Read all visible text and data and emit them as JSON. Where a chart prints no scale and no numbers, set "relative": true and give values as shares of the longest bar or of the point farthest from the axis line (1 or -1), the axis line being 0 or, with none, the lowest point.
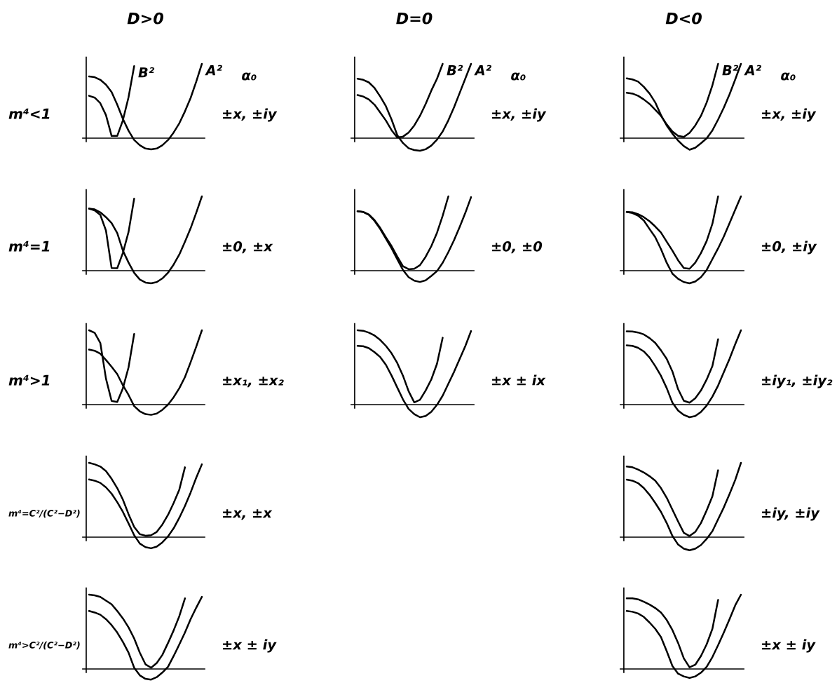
{
  "chart_data": [
    {
      "type": "line",
      "relative": true,
      "title": "D>0",
      "ylabel": "m⁴<1",
      "categories": [
        null,
        null,
        null,
        null,
        null,
        null,
        null,
        null,
        null,
        null,
        null,
        null,
        null,
        null,
        null,
        null,
        null,
        null,
        null,
        null,
        null
      ],
      "series": [
        {
          "name": "B²",
          "color": "#000000",
          "values": [
            0.57,
            0.545,
            0.47,
            0.31,
            0.03,
            0.03,
            0.24,
            0.55,
            0.97,
            null,
            null,
            null,
            null,
            null,
            null,
            null,
            null,
            null,
            null,
            null,
            null
          ]
        },
        {
          "name": "A²",
          "color": "#000000",
          "values": [
            0.83,
            0.82,
            0.785,
            0.72,
            0.62,
            0.45,
            0.26,
            0.1,
            -0.025,
            -0.095,
            -0.14,
            -0.15,
            -0.14,
            -0.095,
            -0.025,
            0.076,
            0.2,
            0.36,
            0.54,
            0.76,
            1.0
          ]
        }
      ],
      "annotations": [
        "α₀",
        "±x, ±iy"
      ]
    },
    {
      "type": "line",
      "relative": true,
      "title": "D=0",
      "categories": [
        null,
        null,
        null,
        null,
        null,
        null,
        null,
        null,
        null,
        null,
        null,
        null,
        null,
        null,
        null,
        null,
        null,
        null,
        null,
        null,
        null
      ],
      "series": [
        {
          "name": "B²",
          "color": "#000000",
          "values": [
            0.58,
            0.56,
            0.52,
            0.45,
            0.345,
            0.237,
            0.107,
            0.01,
            0.02,
            0.075,
            0.17,
            0.3,
            0.46,
            0.64,
            0.8,
            1.0,
            null,
            null,
            null,
            null,
            null
          ]
        },
        {
          "name": "A²",
          "color": "#000000",
          "values": [
            0.8,
            0.785,
            0.75,
            0.675,
            0.56,
            0.43,
            0.25,
            0.04,
            -0.065,
            -0.136,
            -0.16,
            -0.17,
            -0.15,
            -0.1,
            -0.02,
            0.09,
            0.24,
            0.415,
            0.61,
            0.805,
            1.0
          ]
        }
      ],
      "annotations": [
        "α₀",
        "±x, ±iy"
      ]
    },
    {
      "type": "line",
      "relative": true,
      "title": "D<0",
      "categories": [
        null,
        null,
        null,
        null,
        null,
        null,
        null,
        null,
        null,
        null,
        null,
        null,
        null,
        null,
        null,
        null,
        null,
        null,
        null,
        null,
        null
      ],
      "series": [
        {
          "name": "B²",
          "color": "#000000",
          "values": [
            0.61,
            0.6,
            0.57,
            0.52,
            0.46,
            0.38,
            0.3,
            0.185,
            0.09,
            0.03,
            0.016,
            0.07,
            0.17,
            0.3,
            0.48,
            0.71,
            1.0,
            null,
            null,
            null,
            null
          ]
        },
        {
          "name": "A²",
          "color": "#000000",
          "values": [
            0.805,
            0.79,
            0.76,
            0.69,
            0.6,
            0.48,
            0.31,
            0.17,
            0.06,
            -0.033,
            -0.107,
            -0.156,
            -0.13,
            -0.068,
            -0.003,
            0.104,
            0.25,
            0.41,
            0.59,
            0.79,
            1.0
          ]
        }
      ],
      "annotations": [
        "α₀",
        "±x, ±iy"
      ]
    },
    {
      "type": "line",
      "relative": true,
      "ylabel": "m⁴=1",
      "categories": [
        null,
        null,
        null,
        null,
        null,
        null,
        null,
        null,
        null,
        null,
        null,
        null,
        null,
        null,
        null,
        null,
        null,
        null,
        null,
        null,
        null
      ],
      "series": [
        {
          "color": "#000000",
          "values": [
            0.835,
            0.81,
            0.75,
            0.54,
            0.036,
            0.033,
            0.24,
            0.52,
            0.97,
            null,
            null,
            null,
            null,
            null,
            null,
            null,
            null,
            null,
            null,
            null,
            null
          ]
        },
        {
          "color": "#000000",
          "values": [
            0.835,
            0.825,
            0.785,
            0.72,
            0.64,
            0.505,
            0.27,
            0.11,
            -0.03,
            -0.119,
            -0.16,
            -0.17,
            -0.153,
            -0.104,
            -0.028,
            0.083,
            0.218,
            0.39,
            0.57,
            0.78,
            1.0
          ]
        }
      ],
      "annotations": [
        "±0, ±x"
      ]
    },
    {
      "type": "line",
      "relative": true,
      "categories": [
        null,
        null,
        null,
        null,
        null,
        null,
        null,
        null,
        null,
        null,
        null,
        null,
        null,
        null,
        null,
        null,
        null,
        null,
        null,
        null,
        null
      ],
      "series": [
        {
          "color": "#000000",
          "values": [
            0.8,
            0.79,
            0.755,
            0.68,
            0.575,
            0.45,
            0.33,
            0.19,
            0.06,
            0.02,
            0.026,
            0.074,
            0.187,
            0.33,
            0.51,
            0.74,
            1.0,
            null,
            null,
            null,
            null
          ]
        },
        {
          "color": "#000000",
          "values": [
            0.8,
            0.79,
            0.75,
            0.67,
            0.56,
            0.43,
            0.3,
            0.155,
            0.01,
            -0.087,
            -0.135,
            -0.152,
            -0.13,
            -0.07,
            -0.006,
            0.106,
            0.25,
            0.41,
            0.59,
            0.78,
            0.99
          ]
        }
      ],
      "annotations": [
        "±0, ±0"
      ]
    },
    {
      "type": "line",
      "relative": true,
      "categories": [
        null,
        null,
        null,
        null,
        null,
        null,
        null,
        null,
        null,
        null,
        null,
        null,
        null,
        null,
        null,
        null,
        null,
        null,
        null,
        null,
        null
      ],
      "series": [
        {
          "color": "#000000",
          "values": [
            0.79,
            0.785,
            0.76,
            0.72,
            0.665,
            0.594,
            0.513,
            0.39,
            0.27,
            0.14,
            0.036,
            0.026,
            0.107,
            0.237,
            0.4,
            0.63,
            1.0,
            null,
            null,
            null,
            null
          ]
        },
        {
          "color": "#000000",
          "values": [
            0.79,
            0.775,
            0.74,
            0.675,
            0.56,
            0.45,
            0.29,
            0.107,
            -0.04,
            -0.11,
            -0.153,
            -0.17,
            -0.146,
            -0.088,
            0.01,
            0.156,
            0.3,
            0.46,
            0.64,
            0.82,
            1.0
          ]
        }
      ],
      "annotations": [
        "±0, ±iy"
      ]
    },
    {
      "type": "line",
      "relative": true,
      "ylabel": "m⁴>1",
      "categories": [
        null,
        null,
        null,
        null,
        null,
        null,
        null,
        null,
        null,
        null,
        null,
        null,
        null,
        null,
        null,
        null,
        null,
        null,
        null,
        null,
        null
      ],
      "series": [
        {
          "color": "#000000",
          "values": [
            1.0,
            0.965,
            0.83,
            0.35,
            0.05,
            0.035,
            0.22,
            0.5,
            0.95,
            null,
            null,
            null,
            null,
            null,
            null,
            null,
            null,
            null,
            null,
            null,
            null
          ]
        },
        {
          "color": "#000000",
          "values": [
            0.74,
            0.725,
            0.685,
            0.6,
            0.51,
            0.41,
            0.26,
            0.13,
            -0.02,
            -0.09,
            -0.128,
            -0.138,
            -0.12,
            -0.07,
            0.0,
            0.1,
            0.22,
            0.37,
            0.57,
            0.78,
            1.0
          ]
        }
      ],
      "annotations": [
        "±x₁, ±x₂"
      ]
    },
    {
      "type": "line",
      "relative": true,
      "categories": [
        null,
        null,
        null,
        null,
        null,
        null,
        null,
        null,
        null,
        null,
        null,
        null,
        null,
        null,
        null,
        null,
        null,
        null,
        null,
        null,
        null
      ],
      "series": [
        {
          "color": "#000000",
          "values": [
            1.0,
            0.994,
            0.968,
            0.93,
            0.87,
            0.79,
            0.69,
            0.56,
            0.39,
            0.18,
            0.03,
            0.064,
            0.19,
            0.34,
            0.55,
            0.9,
            null,
            null,
            null,
            null,
            null
          ]
        },
        {
          "color": "#000000",
          "values": [
            0.79,
            0.785,
            0.76,
            0.705,
            0.64,
            0.535,
            0.39,
            0.23,
            0.07,
            -0.058,
            -0.128,
            -0.17,
            -0.154,
            -0.096,
            -0.003,
            0.12,
            0.28,
            0.44,
            0.615,
            0.79,
            0.99
          ]
        }
      ],
      "annotations": [
        "±x ± ix"
      ]
    },
    {
      "type": "line",
      "relative": true,
      "categories": [
        null,
        null,
        null,
        null,
        null,
        null,
        null,
        null,
        null,
        null,
        null,
        null,
        null,
        null,
        null,
        null,
        null,
        null,
        null,
        null,
        null
      ],
      "series": [
        {
          "color": "#000000",
          "values": [
            0.987,
            0.984,
            0.97,
            0.944,
            0.895,
            0.83,
            0.73,
            0.616,
            0.446,
            0.207,
            0.052,
            0.026,
            0.085,
            0.19,
            0.338,
            0.518,
            0.88,
            null,
            null,
            null,
            null
          ]
        },
        {
          "color": "#000000",
          "values": [
            0.797,
            0.79,
            0.764,
            0.715,
            0.633,
            0.518,
            0.387,
            0.223,
            0.026,
            -0.08,
            -0.138,
            -0.17,
            -0.154,
            -0.098,
            -0.013,
            0.108,
            0.256,
            0.436,
            0.616,
            0.813,
            1.0
          ]
        }
      ],
      "annotations": [
        "±iy₁, ±iy₂"
      ]
    },
    {
      "type": "line",
      "relative": true,
      "ylabel": "m⁴=C²/(C²−D²)",
      "categories": [
        null,
        null,
        null,
        null,
        null,
        null,
        null,
        null,
        null,
        null,
        null,
        null,
        null,
        null,
        null,
        null,
        null,
        null,
        null,
        null,
        null
      ],
      "series": [
        {
          "color": "#000000",
          "values": [
            1.0,
            0.98,
            0.95,
            0.89,
            0.785,
            0.66,
            0.505,
            0.31,
            0.137,
            0.04,
            0.02,
            0.026,
            0.07,
            0.17,
            0.3,
            0.46,
            0.64,
            0.94,
            null,
            null,
            null
          ]
        },
        {
          "color": "#000000",
          "values": [
            0.776,
            0.76,
            0.73,
            0.67,
            0.585,
            0.47,
            0.34,
            0.185,
            0.026,
            -0.086,
            -0.134,
            -0.15,
            -0.128,
            -0.07,
            0.01,
            0.12,
            0.26,
            0.42,
            0.6,
            0.8,
            0.98
          ]
        }
      ],
      "annotations": [
        "±x, ±x"
      ]
    },
    {
      "type": "line",
      "relative": true,
      "categories": [
        null,
        null,
        null,
        null,
        null,
        null,
        null,
        null,
        null,
        null,
        null,
        null,
        null,
        null,
        null,
        null,
        null,
        null,
        null,
        null,
        null
      ],
      "series": [
        {
          "color": "#000000",
          "values": [
            0.95,
            0.94,
            0.91,
            0.87,
            0.82,
            0.76,
            0.66,
            0.53,
            0.37,
            0.21,
            0.058,
            0.016,
            0.07,
            0.19,
            0.36,
            0.55,
            0.9,
            null,
            null,
            null,
            null
          ]
        },
        {
          "color": "#000000",
          "values": [
            0.774,
            0.76,
            0.726,
            0.66,
            0.57,
            0.46,
            0.34,
            0.19,
            0.016,
            -0.1,
            -0.155,
            -0.177,
            -0.155,
            -0.106,
            -0.023,
            0.08,
            0.24,
            0.4,
            0.58,
            0.77,
            1.0
          ]
        }
      ],
      "annotations": [
        "±iy, ±iy"
      ]
    },
    {
      "type": "line",
      "relative": true,
      "ylabel": "m⁴>C²/(C²−D²)",
      "categories": [
        null,
        null,
        null,
        null,
        null,
        null,
        null,
        null,
        null,
        null,
        null,
        null,
        null,
        null,
        null,
        null,
        null,
        null,
        null,
        null,
        null
      ],
      "series": [
        {
          "color": "#000000",
          "values": [
            1.0,
            0.99,
            0.97,
            0.92,
            0.87,
            0.78,
            0.68,
            0.56,
            0.41,
            0.22,
            0.063,
            0.016,
            0.08,
            0.19,
            0.35,
            0.52,
            0.71,
            0.95,
            null,
            null,
            null
          ]
        },
        {
          "color": "#000000",
          "values": [
            0.78,
            0.76,
            0.73,
            0.67,
            0.59,
            0.49,
            0.365,
            0.22,
            0.016,
            -0.086,
            -0.133,
            -0.143,
            -0.11,
            -0.048,
            0.03,
            0.175,
            0.33,
            0.49,
            0.67,
            0.825,
            0.97
          ]
        }
      ],
      "annotations": [
        "±x ± iy"
      ]
    },
    {
      "type": "line",
      "relative": true,
      "categories": [
        null,
        null,
        null,
        null,
        null,
        null,
        null,
        null,
        null,
        null,
        null,
        null,
        null,
        null,
        null,
        null,
        null,
        null,
        null,
        null,
        null
      ],
      "series": [
        {
          "color": "#000000",
          "values": [
            0.95,
            0.95,
            0.937,
            0.905,
            0.867,
            0.82,
            0.76,
            0.66,
            0.524,
            0.35,
            0.143,
            0.022,
            0.057,
            0.175,
            0.333,
            0.54,
            0.93,
            null,
            null,
            null,
            null
          ]
        },
        {
          "color": "#000000",
          "values": [
            0.78,
            0.77,
            0.746,
            0.7,
            0.625,
            0.54,
            0.43,
            0.24,
            0.04,
            -0.063,
            -0.1,
            -0.12,
            -0.1,
            -0.05,
            0.03,
            0.16,
            0.32,
            0.49,
            0.67,
            0.857,
            1.0
          ]
        }
      ],
      "annotations": [
        "±x ± iy"
      ]
    }
  ]
}
